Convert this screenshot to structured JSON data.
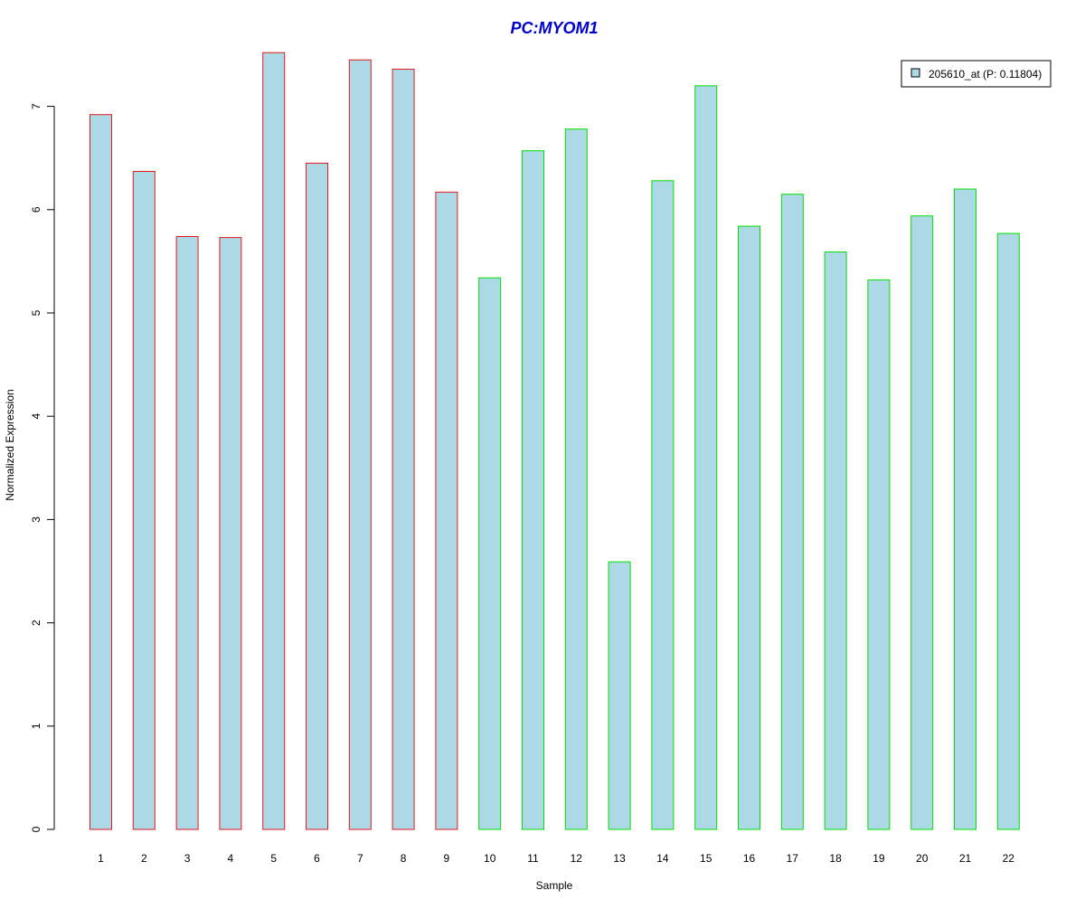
{
  "chart_data": {
    "type": "bar",
    "title": "PC:MYOM1",
    "xlabel": "Sample",
    "ylabel": "Normalized Expression",
    "categories": [
      "1",
      "2",
      "3",
      "4",
      "5",
      "6",
      "7",
      "8",
      "9",
      "10",
      "11",
      "12",
      "13",
      "14",
      "15",
      "16",
      "17",
      "18",
      "19",
      "20",
      "21",
      "22"
    ],
    "series": [
      {
        "name": "205610_at (P: 0.11804)",
        "values": [
          6.92,
          6.37,
          5.74,
          5.73,
          7.52,
          6.45,
          7.45,
          7.36,
          6.17,
          5.34,
          6.57,
          6.78,
          2.59,
          6.28,
          7.2,
          5.84,
          6.15,
          5.59,
          5.32,
          5.94,
          6.2,
          5.77
        ]
      }
    ],
    "groups": [
      {
        "samples": [
          1,
          2,
          3,
          4,
          5,
          6,
          7,
          8,
          9
        ],
        "outline_color": "#e31a1c"
      },
      {
        "samples": [
          10,
          11,
          12,
          13,
          14,
          15,
          16,
          17,
          18,
          19,
          20,
          21,
          22
        ],
        "outline_color": "#00e000"
      }
    ],
    "yticks": [
      0,
      1,
      2,
      3,
      4,
      5,
      6,
      7
    ],
    "ylim": [
      0,
      7.52
    ],
    "grid": false,
    "legend_position": "top-right",
    "colors": {
      "bar_fill": "#add8e6",
      "title": "#0000cd",
      "axis": "#000000"
    }
  }
}
